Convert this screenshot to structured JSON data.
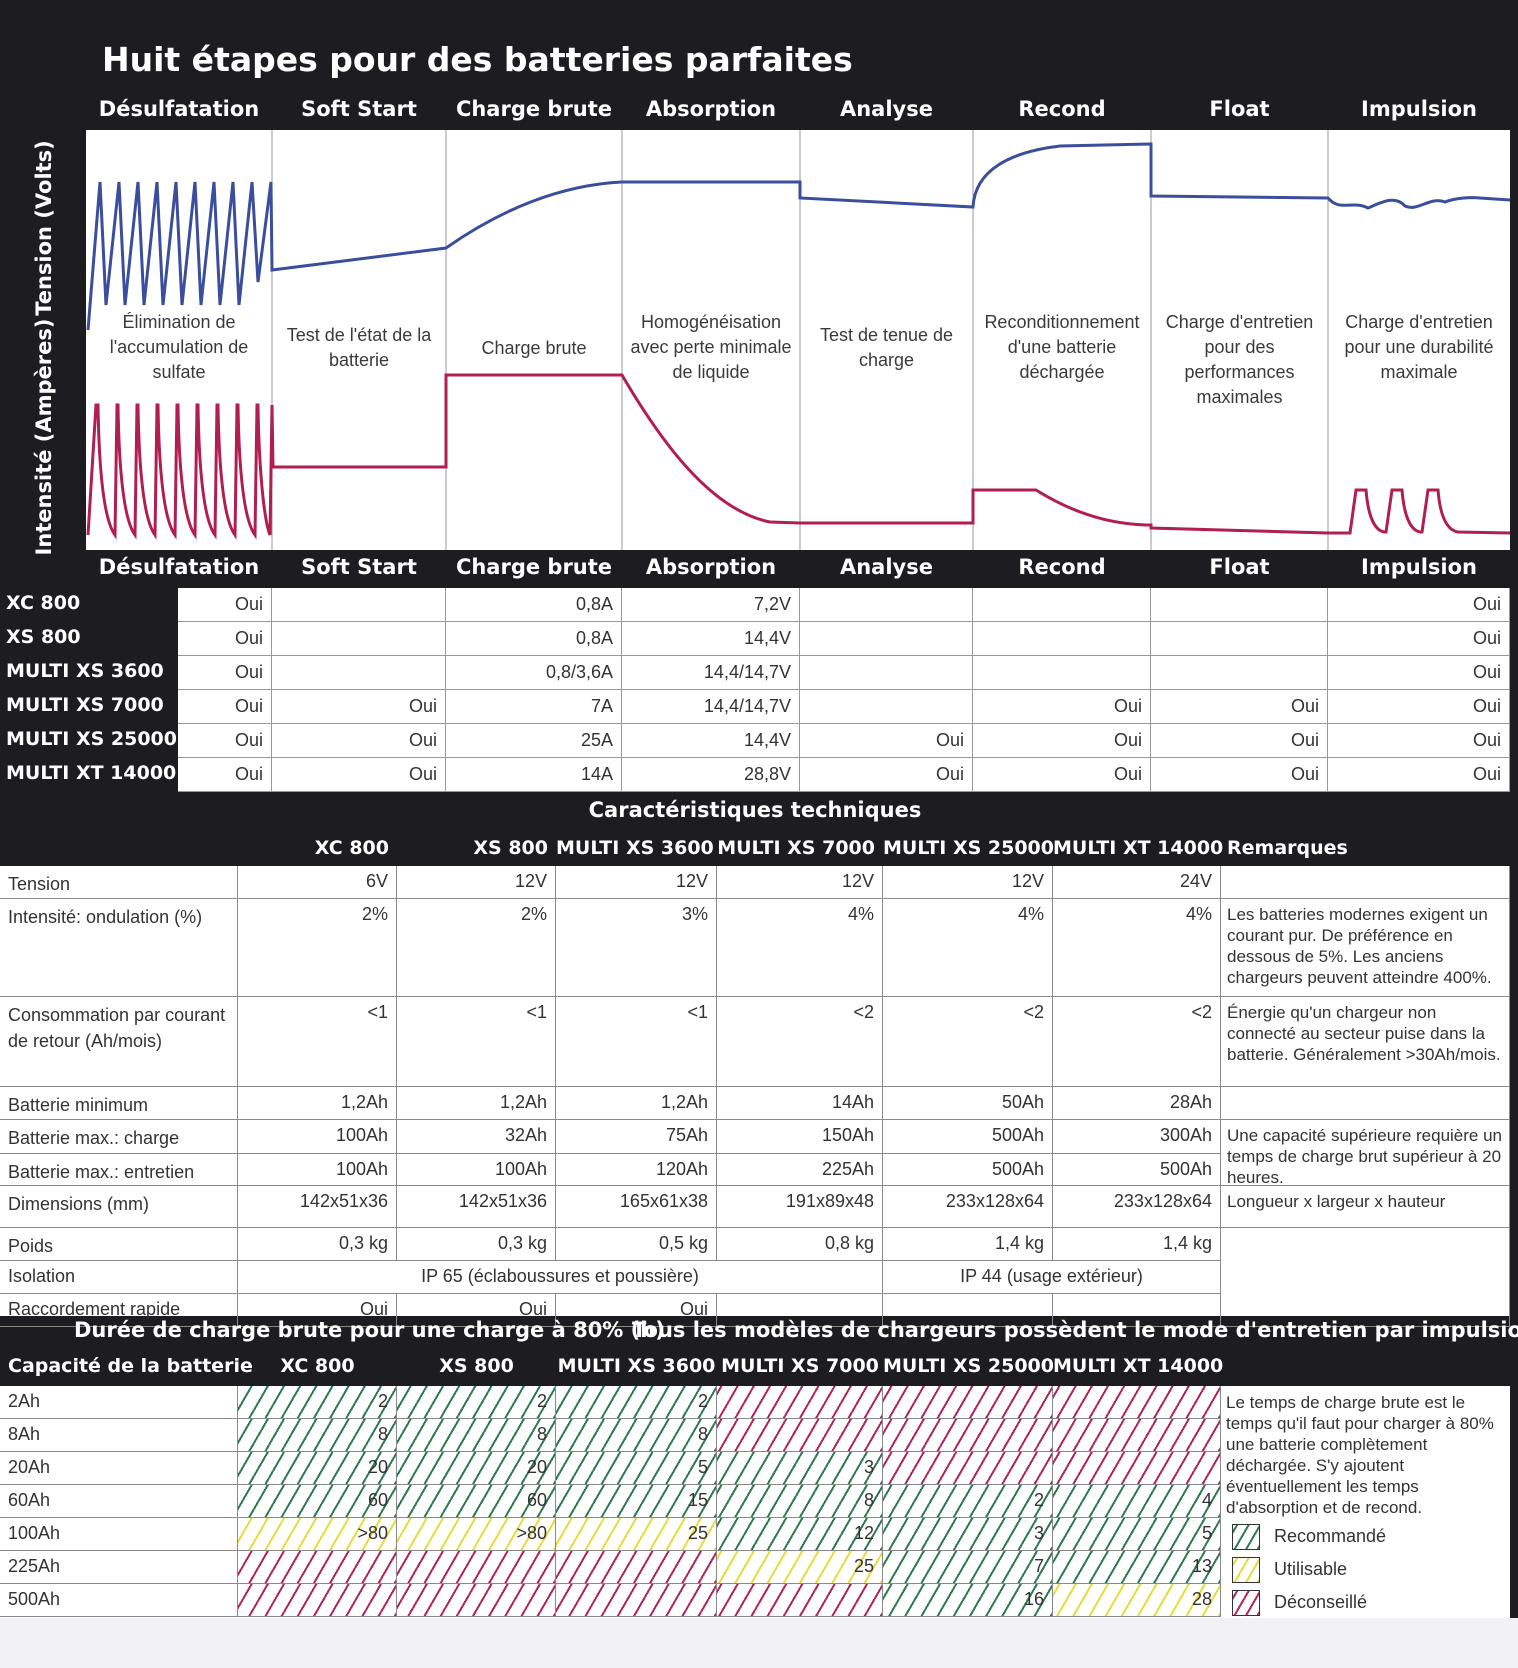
{
  "title": "Huit étapes pour des batteries parfaites",
  "stages": [
    "Désulfatation",
    "Soft Start",
    "Charge brute",
    "Absorption",
    "Analyse",
    "Recond",
    "Float",
    "Impulsion"
  ],
  "axis_labels": {
    "voltage": "Tension (Volts)",
    "current": "Intensité (Ampères)"
  },
  "stage_descriptions": [
    "Élimination de l'accumulation de sulfate",
    "Test de l'état de la batterie",
    "Charge brute",
    "Homogénéisation avec perte minimale de liquide",
    "Test de tenue de charge",
    "Reconditionnement d'une batterie déchargée",
    "Charge d'entretien pour des performances maximales",
    "Charge d'entretien pour une durabilité maximale"
  ],
  "models_table": [
    {
      "model": "XC 800",
      "cells": [
        "Oui",
        "",
        "0,8A",
        "7,2V",
        "",
        "",
        "",
        "Oui"
      ]
    },
    {
      "model": "XS 800",
      "cells": [
        "Oui",
        "",
        "0,8A",
        "14,4V",
        "",
        "",
        "",
        "Oui"
      ]
    },
    {
      "model": "MULTI XS 3600",
      "cells": [
        "Oui",
        "",
        "0,8/3,6A",
        "14,4/14,7V",
        "",
        "",
        "",
        "Oui"
      ]
    },
    {
      "model": "MULTI XS 7000",
      "cells": [
        "Oui",
        "Oui",
        "7A",
        "14,4/14,7V",
        "",
        "Oui",
        "Oui",
        "Oui"
      ]
    },
    {
      "model": "MULTI XS 25000",
      "cells": [
        "Oui",
        "Oui",
        "25A",
        "14,4V",
        "Oui",
        "Oui",
        "Oui",
        "Oui"
      ]
    },
    {
      "model": "MULTI XT 14000",
      "cells": [
        "Oui",
        "Oui",
        "14A",
        "28,8V",
        "Oui",
        "Oui",
        "Oui",
        "Oui"
      ]
    }
  ],
  "specs": {
    "title": "Caractéristiques techniques",
    "headers": [
      "XC 800",
      "XS 800",
      "MULTI XS 3600",
      "MULTI XS 7000",
      "MULTI XS 25000",
      "MULTI XT 14000",
      "Remarques"
    ],
    "rows": [
      {
        "label": "Tension",
        "values": [
          "6V",
          "12V",
          "12V",
          "12V",
          "12V",
          "24V"
        ],
        "remark": ""
      },
      {
        "label": "Intensité: ondulation (%)",
        "values": [
          "2%",
          "2%",
          "3%",
          "4%",
          "4%",
          "4%"
        ],
        "remark": "Les batteries modernes exigent un courant pur. De préférence en dessous de 5%. Les anciens chargeurs peuvent atteindre 400%."
      },
      {
        "label": "Consommation par courant de retour (Ah/mois)",
        "values": [
          "<1",
          "<1",
          "<1",
          "<2",
          "<2",
          "<2"
        ],
        "remark": "Énergie qu'un chargeur non connecté au secteur puise dans la batterie. Généralement >30Ah/mois."
      },
      {
        "label": "Batterie minimum",
        "values": [
          "1,2Ah",
          "1,2Ah",
          "1,2Ah",
          "14Ah",
          "50Ah",
          "28Ah"
        ],
        "remark": ""
      },
      {
        "label": "Batterie max.: charge",
        "values": [
          "100Ah",
          "32Ah",
          "75Ah",
          "150Ah",
          "500Ah",
          "300Ah"
        ],
        "remark": "Une capacité supérieure requière un temps de charge brut supérieur à 20 heures."
      },
      {
        "label": "Batterie max.: entretien",
        "values": [
          "100Ah",
          "100Ah",
          "120Ah",
          "225Ah",
          "500Ah",
          "500Ah"
        ],
        "remark": ""
      },
      {
        "label": "Dimensions (mm)",
        "values": [
          "142x51x36",
          "142x51x36",
          "165x61x38",
          "191x89x48",
          "233x128x64",
          "233x128x64"
        ],
        "remark": "Longueur x largeur x hauteur"
      },
      {
        "label": "Poids",
        "values": [
          "0,3 kg",
          "0,3 kg",
          "0,5 kg",
          "0,8 kg",
          "1,4 kg",
          "1,4 kg"
        ],
        "remark": ""
      }
    ],
    "isolation": {
      "label": "Isolation",
      "a": "IP 65 (éclaboussures et poussière)",
      "b": "IP 44 (usage extérieur)"
    },
    "quick": {
      "label": "Raccordement rapide",
      "values": [
        "Oui",
        "Oui",
        "Oui"
      ]
    }
  },
  "charge_time": {
    "title_left": "Durée de charge brute pour une charge à 80% (h)",
    "title_right": "Tous les modèles de chargeurs possèdent le mode d'entretien par impulsions",
    "first_header": "Capacité de la batterie",
    "rows": [
      {
        "cap": "2Ah",
        "vals": [
          "2",
          "2",
          "2",
          "",
          "",
          ""
        ],
        "cls": [
          "g",
          "g",
          "g",
          "r",
          "r",
          "r"
        ]
      },
      {
        "cap": "8Ah",
        "vals": [
          "8",
          "8",
          "8",
          "",
          "",
          ""
        ],
        "cls": [
          "g",
          "g",
          "g",
          "r",
          "r",
          "r"
        ]
      },
      {
        "cap": "20Ah",
        "vals": [
          "20",
          "20",
          "5",
          "3",
          "",
          ""
        ],
        "cls": [
          "g",
          "g",
          "g",
          "g",
          "r",
          "r"
        ]
      },
      {
        "cap": "60Ah",
        "vals": [
          "60",
          "60",
          "15",
          "8",
          "2",
          "4"
        ],
        "cls": [
          "g",
          "g",
          "g",
          "g",
          "g",
          "g"
        ]
      },
      {
        "cap": "100Ah",
        "vals": [
          ">80",
          ">80",
          "25",
          "12",
          "3",
          "5"
        ],
        "cls": [
          "y",
          "y",
          "y",
          "g",
          "g",
          "g"
        ]
      },
      {
        "cap": "225Ah",
        "vals": [
          "",
          "",
          "",
          "25",
          "7",
          "13"
        ],
        "cls": [
          "r",
          "r",
          "r",
          "y",
          "g",
          "g"
        ]
      },
      {
        "cap": "500Ah",
        "vals": [
          "",
          "",
          "",
          "",
          "16",
          "28"
        ],
        "cls": [
          "r",
          "r",
          "r",
          "r",
          "g",
          "y"
        ]
      }
    ],
    "note": "Le temps de charge brute est le temps qu'il faut pour charger à 80% une batterie complètement déchargée. S'y ajoutent éventuellement les temps d'absorption et de recond.",
    "legend": [
      {
        "label": "Recommandé",
        "color": "#2f7a52"
      },
      {
        "label": "Utilisable",
        "color": "#e6dc3a"
      },
      {
        "label": "Déconseillé",
        "color": "#b3245e"
      }
    ]
  },
  "colors": {
    "voltage": "#3a4e9c",
    "current": "#b01e52",
    "background": "#1d1d21"
  }
}
